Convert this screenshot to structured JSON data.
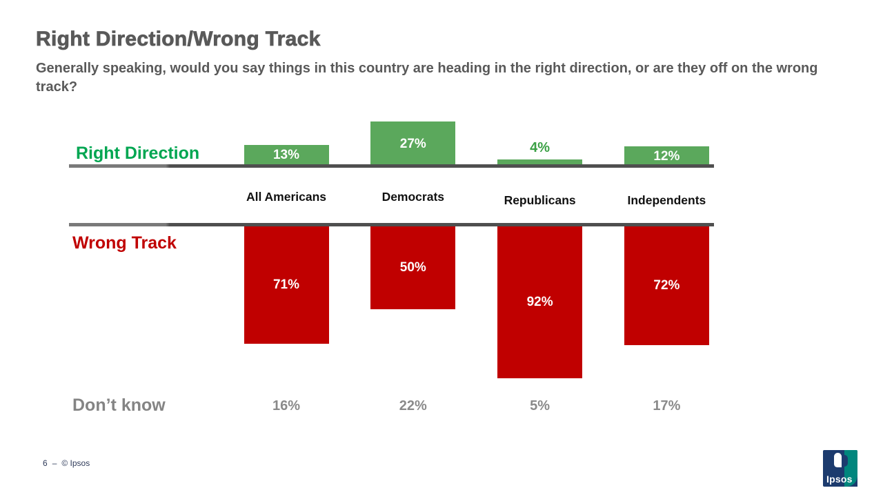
{
  "slide": {
    "title": "Right Direction/Wrong Track",
    "subtitle": "Generally speaking, would you say things in this country are heading in the right direction, or are they off on the wrong track?",
    "footer": {
      "page_number": "6",
      "separator": "–",
      "copyright": "© Ipsos"
    },
    "logo_text": "Ipsos"
  },
  "colors": {
    "green_bar": "#5BA85C",
    "green_series_label": "#00A651",
    "green_outside_value": "#3BA045",
    "red_bar": "#C00000",
    "red_series_label": "#C00000",
    "heading_gray": "#595959",
    "dont_know_gray": "#848484",
    "category_black": "#111111",
    "baseline_gray": "#4F4F4F",
    "footer_navy": "#2E3A59",
    "logo_navy": "#1C3B6E",
    "logo_teal": "#00867D"
  },
  "chart_data": {
    "type": "bar",
    "subtype": "diverging-vertical",
    "title": "Right Direction/Wrong Track",
    "unit": "%",
    "categories": [
      "All Americans",
      "Democrats",
      "Republicans",
      "Independents"
    ],
    "series": [
      {
        "name": "Right Direction",
        "direction": "up",
        "color": "#5BA85C",
        "values": [
          13,
          27,
          4,
          12
        ]
      },
      {
        "name": "Wrong Track",
        "direction": "down",
        "color": "#C00000",
        "values": [
          71,
          50,
          92,
          72
        ]
      },
      {
        "name": "Don’t know",
        "direction": "text-row",
        "color": "#8a8a8a",
        "values": [
          16,
          22,
          5,
          17
        ]
      }
    ],
    "value_labels_shown": true,
    "legend_position": "row-labels-left",
    "grid": false,
    "axis_shown": "two horizontal baselines"
  }
}
